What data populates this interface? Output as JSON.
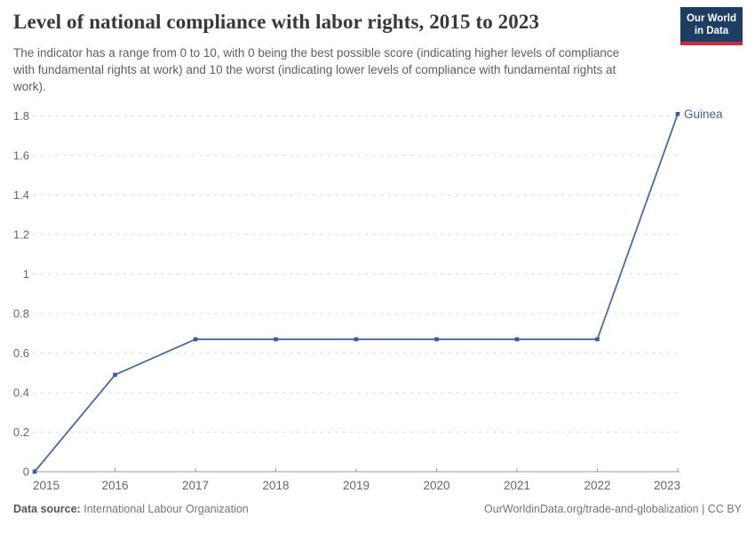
{
  "header": {
    "title": "Level of national compliance with labor rights, 2015 to 2023",
    "subtitle": "The indicator has a range from 0 to 10, with 0 being the best possible score (indicating higher levels of compliance with fundamental rights at work) and 10 the worst (indicating lower levels of compliance with fundamental rights at work).",
    "logo": {
      "line1": "Our World",
      "line2": "in Data"
    }
  },
  "chart_data": {
    "type": "line",
    "title": "Level of national compliance with labor rights, 2015 to 2023",
    "x": [
      2015,
      2016,
      2017,
      2018,
      2019,
      2020,
      2021,
      2022,
      2023
    ],
    "x_tick_labels": [
      "2015",
      "2016",
      "2017",
      "2018",
      "2019",
      "2020",
      "2021",
      "2022",
      "2023"
    ],
    "series": [
      {
        "name": "Guinea",
        "end_label": "Guinea",
        "values": [
          0,
          0.49,
          0.67,
          0.67,
          0.67,
          0.67,
          0.67,
          0.67,
          1.81
        ],
        "color": "#4b6aa3",
        "marker": "square"
      }
    ],
    "ylim": [
      0,
      1.8
    ],
    "yticks": [
      0,
      0.2,
      0.4,
      0.6,
      0.8,
      1,
      1.2,
      1.4,
      1.6,
      1.8
    ],
    "ytick_labels": [
      "0",
      "0.2",
      "0.4",
      "0.6",
      "0.8",
      "1",
      "1.2",
      "1.4",
      "1.6",
      "1.8"
    ],
    "xlabel": "",
    "ylabel": "",
    "grid": "horizontal-dashed",
    "legend": "series-end-label"
  },
  "colors": {
    "line": "#4b6aa3",
    "marker": "#3d5d99",
    "entity_label": "#476292",
    "gridline": "#dddddd",
    "axis": "#9a9a9a",
    "tick_label": "#666666",
    "logo_bg": "#1d3d63",
    "logo_accent": "#d12b3f"
  },
  "footer": {
    "datasource_label": "Data source:",
    "datasource_value": "International Labour Organization",
    "credit": "OurWorldinData.org/trade-and-globalization | CC BY"
  }
}
